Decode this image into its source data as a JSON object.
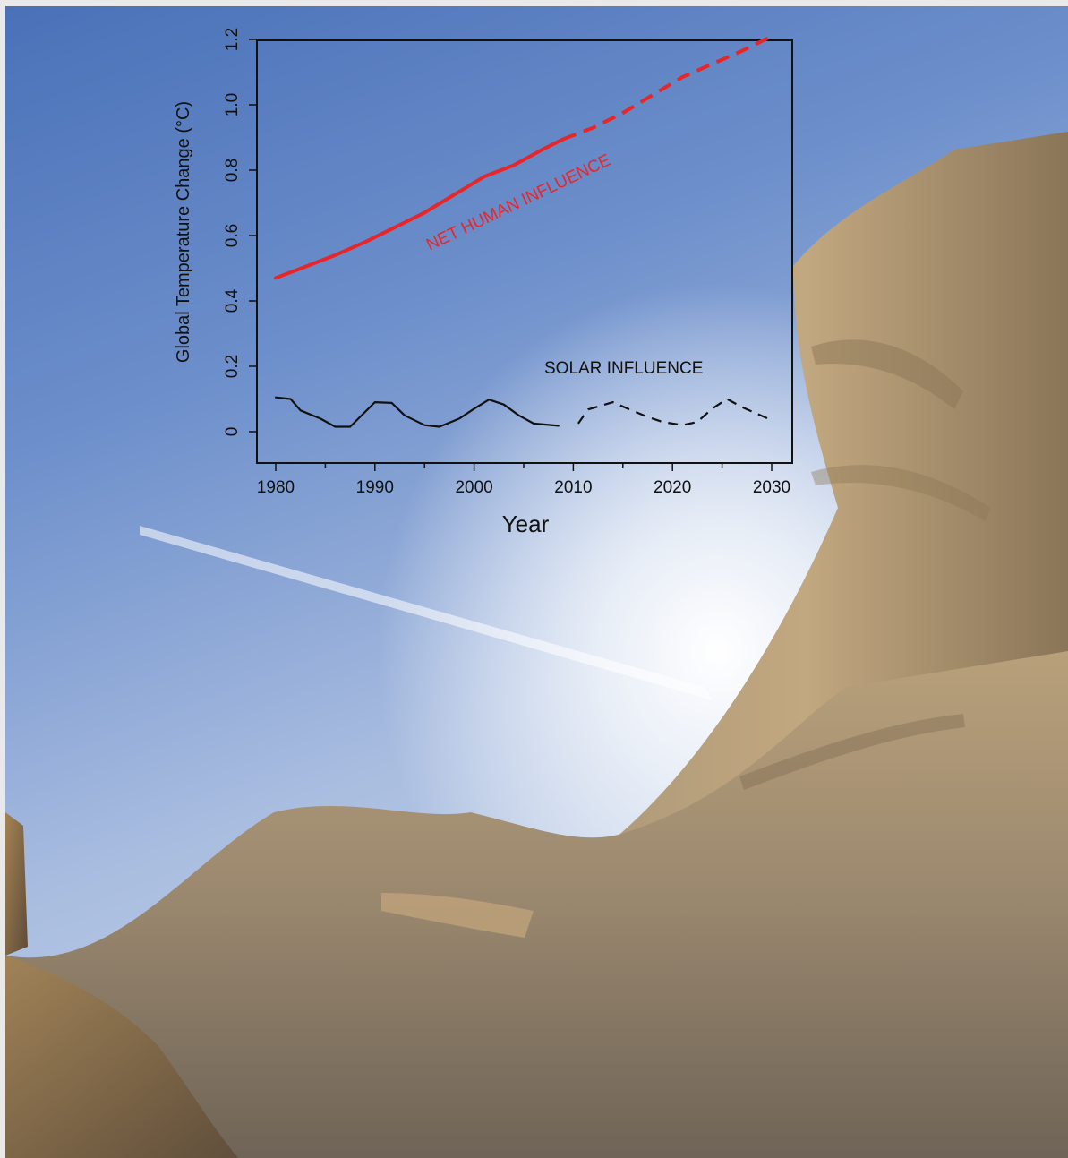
{
  "chart_data": {
    "type": "line",
    "title": "",
    "xlabel": "Year",
    "ylabel": "Global Temperature Change (°C)",
    "xlim": [
      1980,
      2030
    ],
    "ylim": [
      0,
      1.2
    ],
    "xticks": [
      "1980",
      "1990",
      "2000",
      "2010",
      "2020",
      "2030"
    ],
    "yticks": [
      "0",
      "0.2",
      "0.4",
      "0.6",
      "0.8",
      "1.0",
      "1.2"
    ],
    "grid": false,
    "series": [
      {
        "name": "NET HUMAN INFLUENCE",
        "color": "#e8262a",
        "observed": {
          "x": [
            1980,
            1983,
            1986,
            1989,
            1992,
            1995,
            1998,
            2001,
            2004,
            2007,
            2009
          ],
          "y": [
            0.47,
            0.505,
            0.54,
            0.58,
            0.625,
            0.67,
            0.725,
            0.78,
            0.815,
            0.865,
            0.895
          ]
        },
        "projected": {
          "x": [
            2009,
            2012,
            2015,
            2018,
            2021,
            2024,
            2027,
            2030
          ],
          "y": [
            0.895,
            0.93,
            0.975,
            1.03,
            1.085,
            1.125,
            1.165,
            1.21
          ]
        }
      },
      {
        "name": "SOLAR INFLUENCE",
        "color": "#111111",
        "observed": {
          "x": [
            1980,
            1981.5,
            1982.5,
            1984.5,
            1986,
            1987.5,
            1990,
            1991.7,
            1993,
            1995,
            1996.5,
            1998.5,
            2000,
            2001.5,
            2003,
            2004.5,
            2006,
            2008.5
          ],
          "y": [
            0.105,
            0.1,
            0.065,
            0.04,
            0.015,
            0.015,
            0.09,
            0.088,
            0.05,
            0.02,
            0.015,
            0.04,
            0.07,
            0.098,
            0.083,
            0.05,
            0.025,
            0.018
          ]
        },
        "projected": {
          "x": [
            2010.5,
            2011.5,
            2014,
            2015.5,
            2017.5,
            2019,
            2021,
            2022.5,
            2024,
            2025.5,
            2027,
            2030
          ],
          "y": [
            0.025,
            0.068,
            0.09,
            0.07,
            0.045,
            0.03,
            0.02,
            0.03,
            0.07,
            0.1,
            0.075,
            0.035
          ]
        }
      }
    ]
  }
}
